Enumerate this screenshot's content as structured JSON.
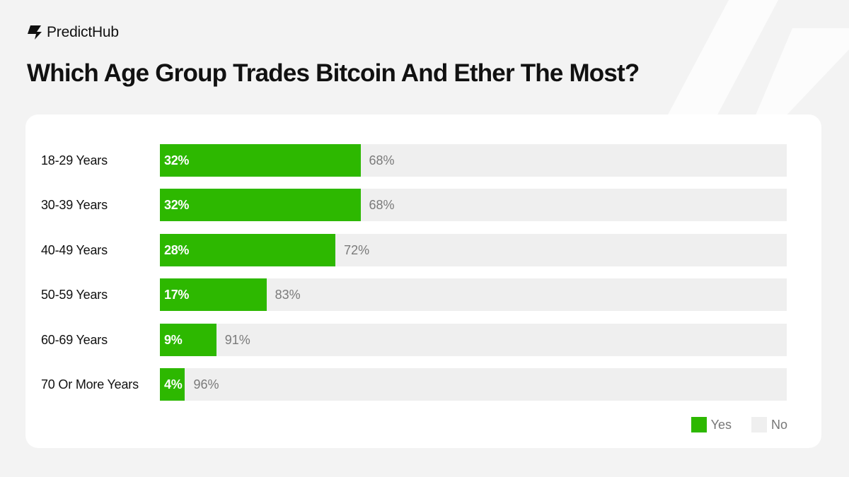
{
  "brand": {
    "name": "PredictHub",
    "logo_icon": "predicthub-logo-icon"
  },
  "title": "Which Age Group Trades Bitcoin And Ether The Most?",
  "colors": {
    "yes": "#2db800",
    "no": "#efefef",
    "background": "#f3f3f3",
    "card": "#ffffff"
  },
  "chart_data": {
    "type": "bar",
    "orientation": "horizontal",
    "stacked": true,
    "title": "Which Age Group Trades Bitcoin And Ether The Most?",
    "categories": [
      "18-29 Years",
      "30-39 Years",
      "40-49 Years",
      "50-59 Years",
      "60-69 Years",
      "70 Or More Years"
    ],
    "series": [
      {
        "name": "Yes",
        "values": [
          32,
          32,
          28,
          17,
          9,
          4
        ],
        "labels": [
          "32%",
          "32%",
          "28%",
          "17%",
          "9%",
          "4%"
        ]
      },
      {
        "name": "No",
        "values": [
          68,
          68,
          72,
          83,
          91,
          96
        ],
        "labels": [
          "68%",
          "68%",
          "72%",
          "83%",
          "91%",
          "96%"
        ]
      }
    ],
    "xlim": [
      0,
      100
    ],
    "grid": false,
    "legend": {
      "position": "bottom-right",
      "items": [
        "Yes",
        "No"
      ]
    }
  }
}
